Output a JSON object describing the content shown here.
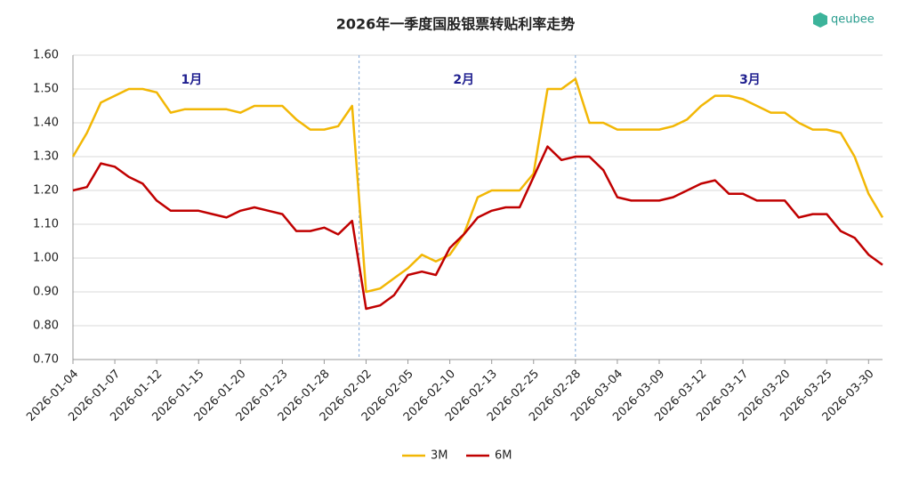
{
  "chart_data": {
    "type": "line",
    "title": "2026年一季度国股银票转贴利率走势",
    "logo": "qeubee",
    "annotations": [
      "1月",
      "2月",
      "3月"
    ],
    "categories": [
      "2026-01-04",
      null,
      null,
      "2026-01-07",
      null,
      null,
      "2026-01-12",
      null,
      null,
      "2026-01-15",
      null,
      null,
      "2026-01-20",
      null,
      null,
      "2026-01-23",
      null,
      null,
      "2026-01-28",
      null,
      null,
      "2026-02-02",
      null,
      null,
      "2026-02-05",
      null,
      null,
      "2026-02-10",
      null,
      null,
      "2026-02-13",
      null,
      null,
      "2026-02-25",
      null,
      null,
      "2026-02-28",
      null,
      null,
      "2026-03-04",
      null,
      null,
      "2026-03-09",
      null,
      null,
      "2026-03-12",
      null,
      null,
      "2026-03-17",
      null,
      null,
      "2026-03-20",
      null,
      null,
      "2026-03-25",
      null,
      null,
      "2026-03-30",
      null
    ],
    "series": [
      {
        "name": "3M",
        "color": "#f2b705",
        "values": [
          1.3,
          1.37,
          1.46,
          1.48,
          1.5,
          1.5,
          1.49,
          1.43,
          1.44,
          1.44,
          1.44,
          1.44,
          1.43,
          1.45,
          1.45,
          1.45,
          1.41,
          1.38,
          1.38,
          1.39,
          1.45,
          0.9,
          0.91,
          0.94,
          0.97,
          1.01,
          0.99,
          1.01,
          1.07,
          1.18,
          1.2,
          1.2,
          1.2,
          1.25,
          1.5,
          1.5,
          1.53,
          1.4,
          1.4,
          1.38,
          1.38,
          1.38,
          1.38,
          1.39,
          1.41,
          1.45,
          1.48,
          1.48,
          1.47,
          1.45,
          1.43,
          1.43,
          1.4,
          1.38,
          1.38,
          1.37,
          1.3,
          1.19,
          1.12
        ]
      },
      {
        "name": "6M",
        "color": "#c00000",
        "values": [
          1.2,
          1.21,
          1.28,
          1.27,
          1.24,
          1.22,
          1.17,
          1.14,
          1.14,
          1.14,
          1.13,
          1.12,
          1.14,
          1.15,
          1.14,
          1.13,
          1.08,
          1.08,
          1.09,
          1.07,
          1.11,
          0.85,
          0.86,
          0.89,
          0.95,
          0.96,
          0.95,
          1.03,
          1.07,
          1.12,
          1.14,
          1.15,
          1.15,
          1.24,
          1.33,
          1.29,
          1.3,
          1.3,
          1.26,
          1.18,
          1.17,
          1.17,
          1.17,
          1.18,
          1.2,
          1.22,
          1.23,
          1.19,
          1.19,
          1.17,
          1.17,
          1.17,
          1.12,
          1.13,
          1.13,
          1.08,
          1.06,
          1.01,
          0.98
        ]
      }
    ],
    "ylim": [
      0.7,
      1.6
    ],
    "yticks": [
      {
        "value": 0.7,
        "label": "0.70"
      },
      {
        "value": 0.8,
        "label": "0.80"
      },
      {
        "value": 0.9,
        "label": "0.90"
      },
      {
        "value": 1.0,
        "label": "1.00"
      },
      {
        "value": 1.1,
        "label": "1.10"
      },
      {
        "value": 1.2,
        "label": "1.20"
      },
      {
        "value": 1.3,
        "label": "1.30"
      },
      {
        "value": 1.4,
        "label": "1.40"
      },
      {
        "value": 1.5,
        "label": "1.50"
      },
      {
        "value": 1.6,
        "label": "1.60"
      }
    ],
    "grid": true,
    "legend": "bottom"
  }
}
